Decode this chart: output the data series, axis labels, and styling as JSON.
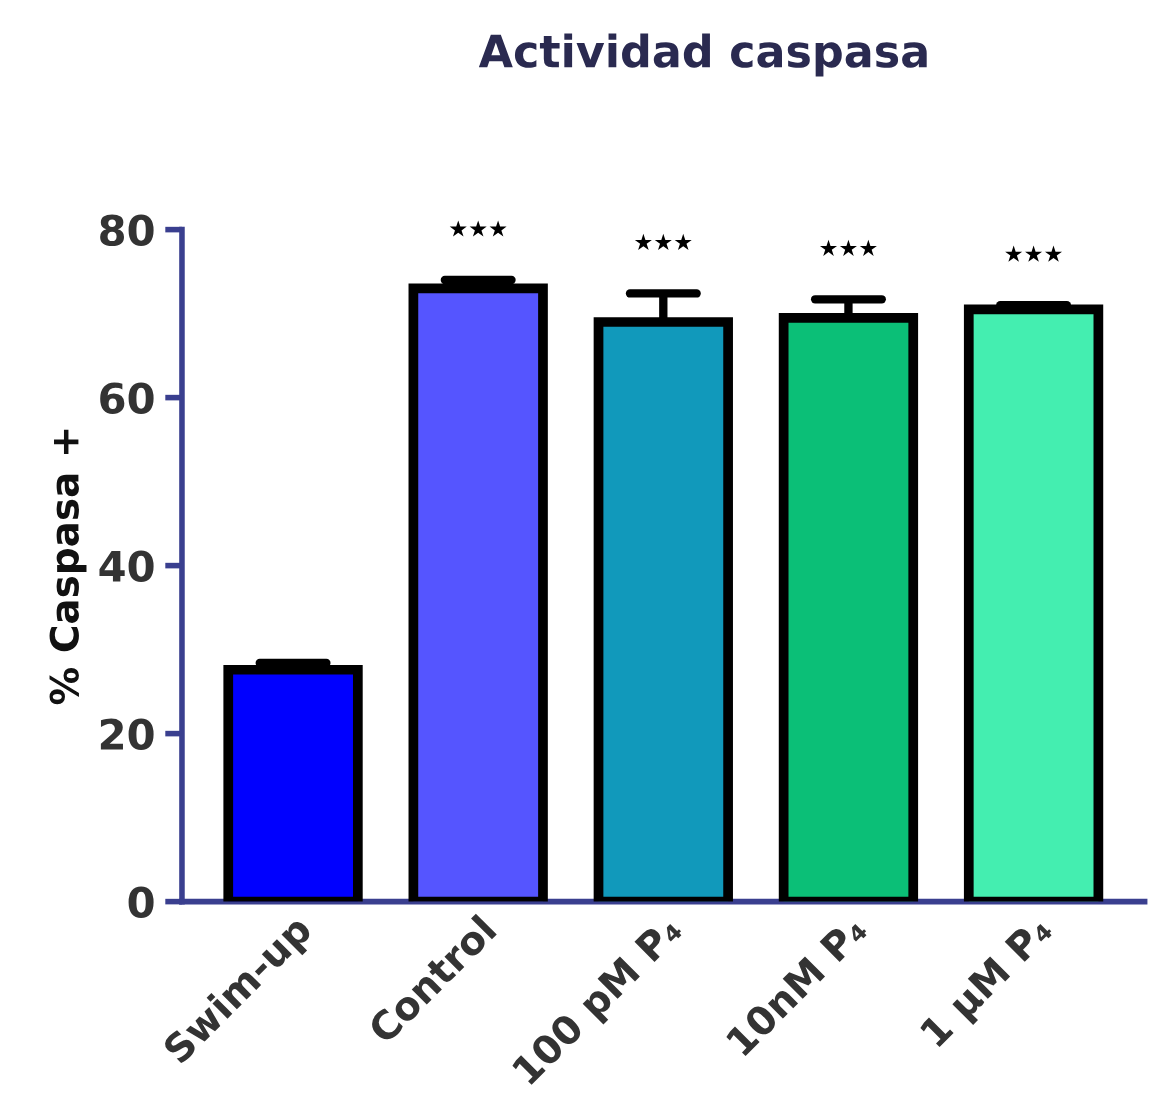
{
  "chart_data": {
    "type": "bar",
    "title": "Actividad caspasa",
    "ylabel": "% Caspasa +",
    "categories": [
      "Swim-up",
      "Control",
      "100 pM P₄",
      "10nM P₄",
      "1 µM P₄"
    ],
    "values": [
      27.6,
      73,
      69,
      69.5,
      70.5
    ],
    "errors": [
      [
        27.6,
        28.4
      ],
      [
        73,
        74
      ],
      [
        69,
        72.4
      ],
      [
        69.5,
        71.7
      ],
      [
        70.5,
        71
      ]
    ],
    "colors": [
      "#0000ff",
      "#5555ff",
      "#1199bb",
      "#0bbf77",
      "#44eeb0"
    ],
    "ylim": [
      0,
      80
    ],
    "yticks": [
      0,
      20,
      40,
      60,
      80
    ],
    "grid": false,
    "legend": false,
    "annotations": [
      "★★★",
      "★★★",
      "★★★",
      "★★★"
    ]
  }
}
